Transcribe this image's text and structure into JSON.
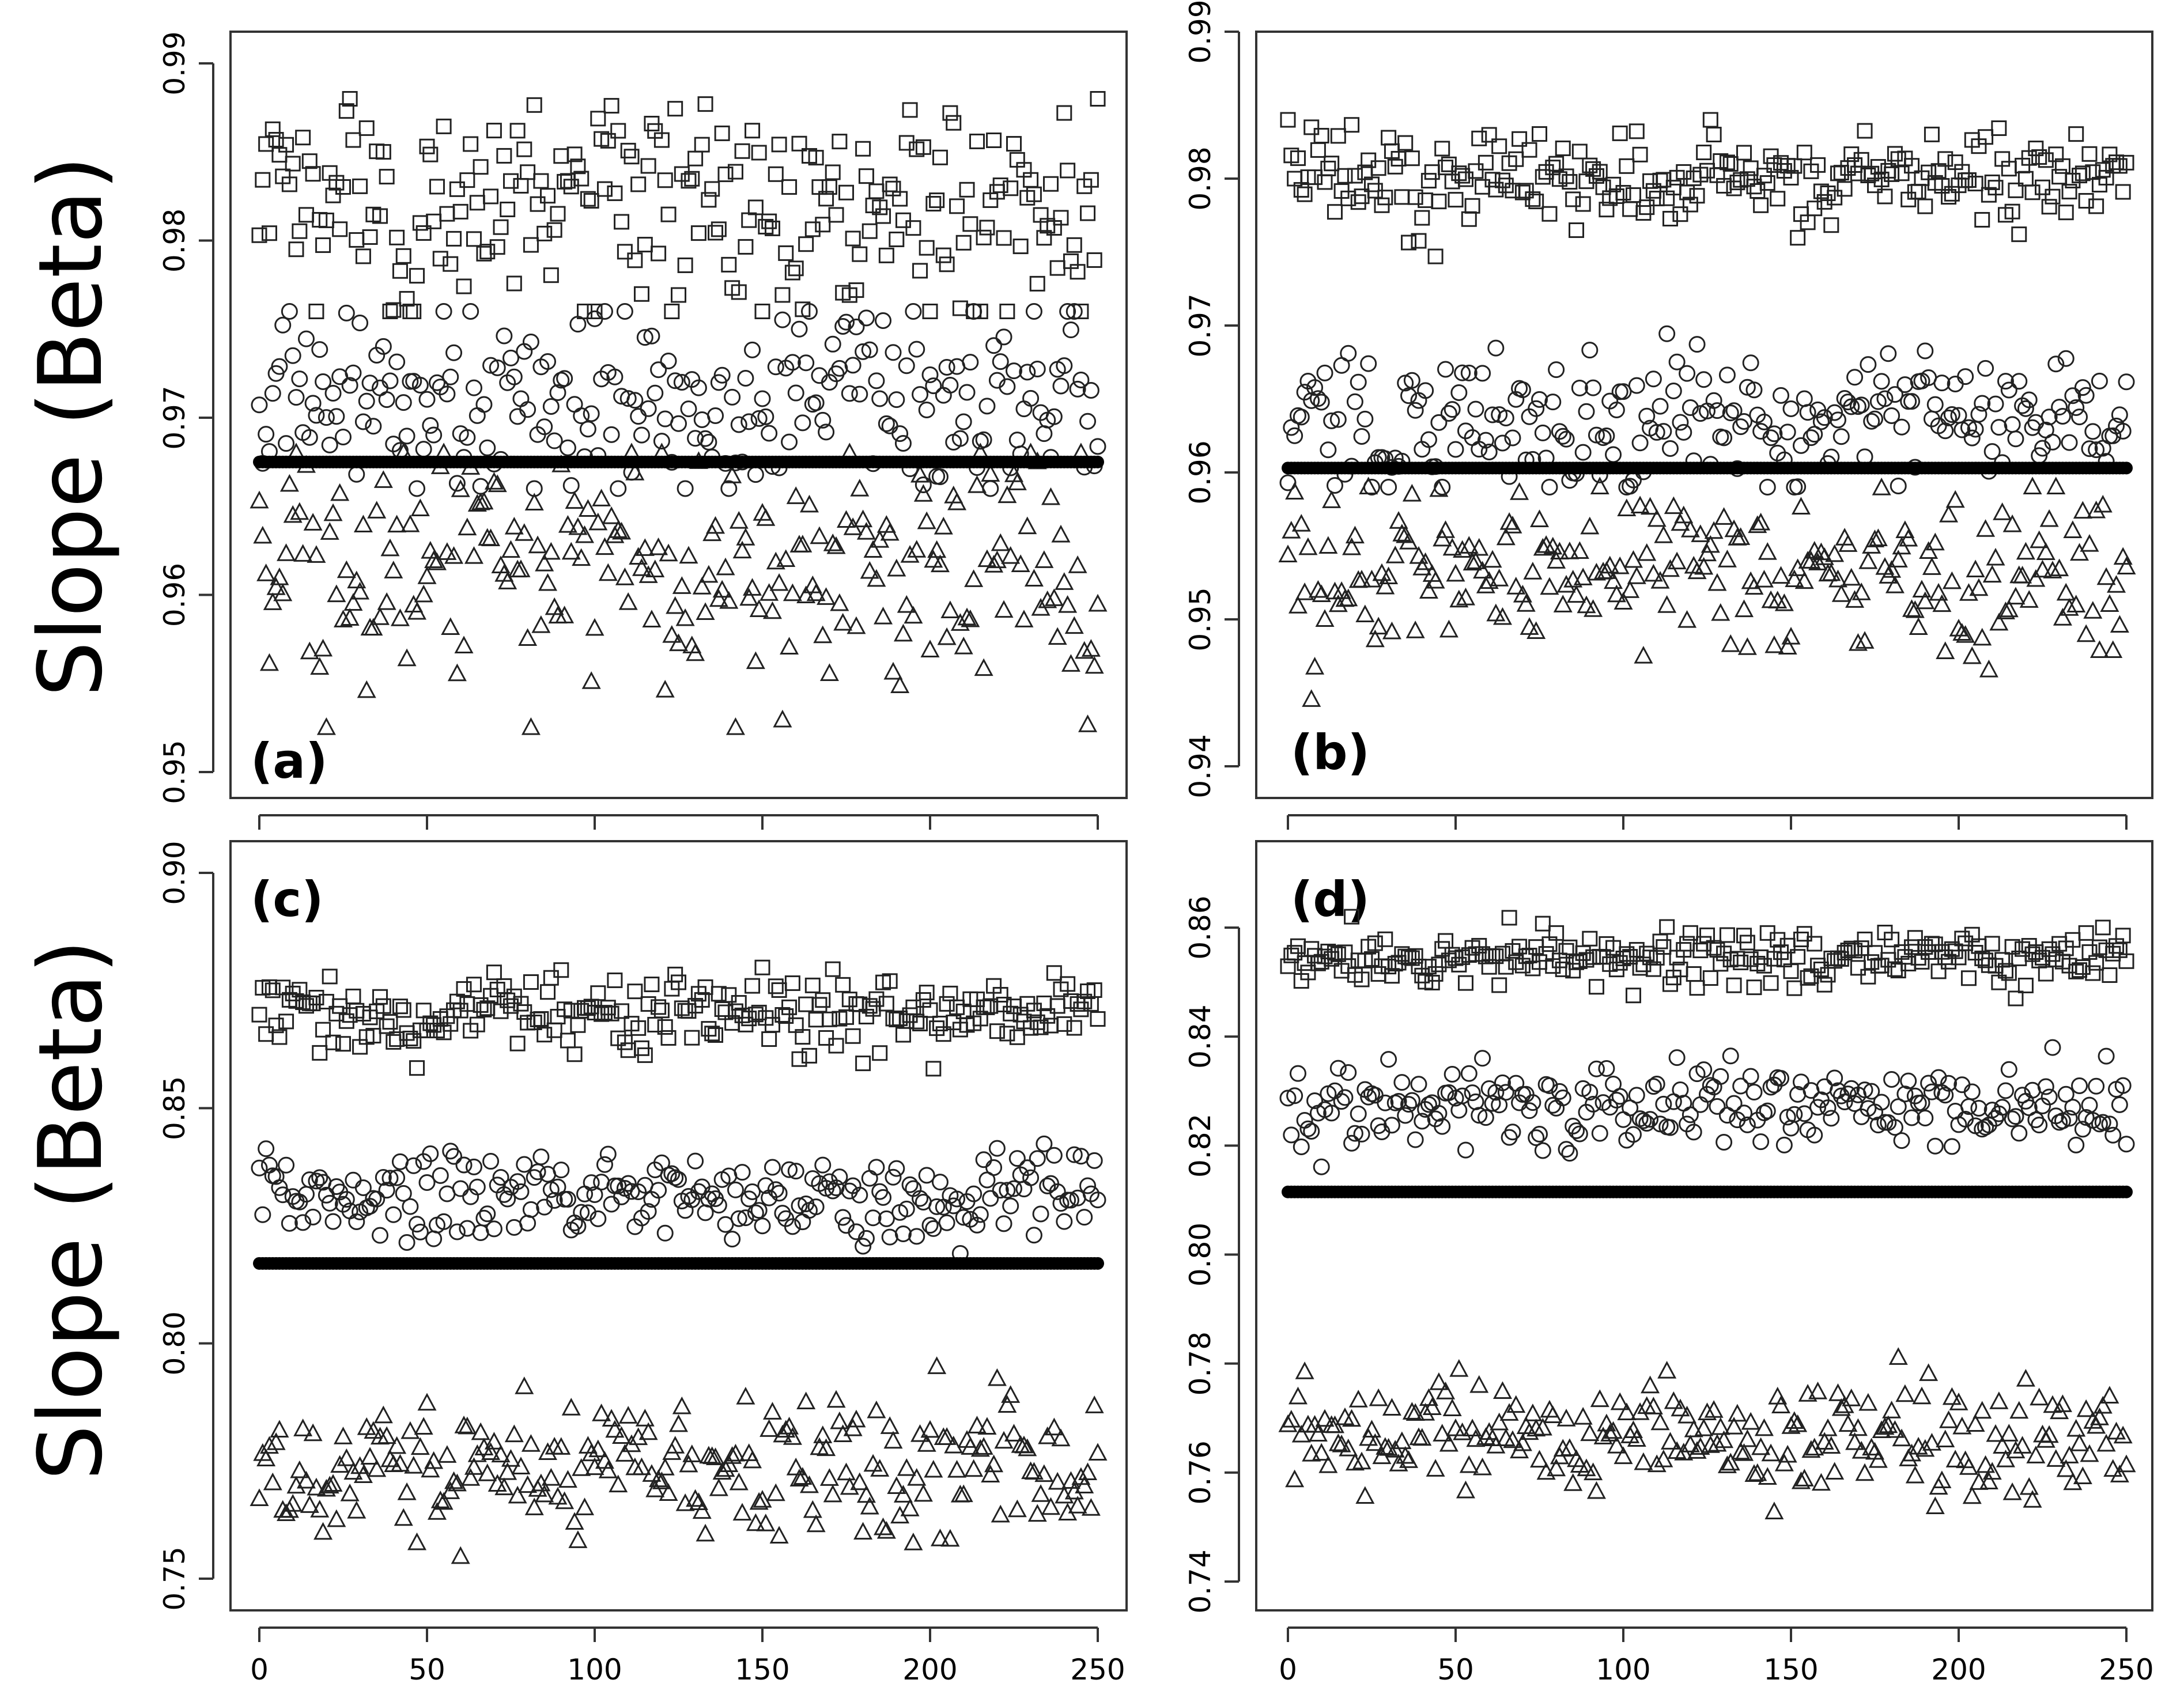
{
  "figure": {
    "ylabel": "Slope (Beta)"
  },
  "chart_data": [
    {
      "type": "scatter",
      "panel_label": "(a)",
      "xlim": [
        0,
        250
      ],
      "ylim": [
        0.95,
        0.99
      ],
      "x_ticks": [
        0,
        50,
        100,
        150,
        200,
        250
      ],
      "y_ticks": [
        0.95,
        0.96,
        0.97,
        0.98,
        0.99
      ],
      "y_tick_labels": [
        "0.95",
        "0.96",
        "0.97",
        "0.98",
        "0.99"
      ],
      "grid": false,
      "x_axis_labels_shown": false,
      "series": [
        {
          "marker": "square",
          "mean": 0.9818,
          "spread": 0.003,
          "min": 0.976,
          "max": 0.988
        },
        {
          "marker": "circle",
          "mean": 0.971,
          "spread": 0.0026,
          "min": 0.966,
          "max": 0.976
        },
        {
          "marker": "triangle",
          "mean": 0.9615,
          "spread": 0.0035,
          "min": 0.9525,
          "max": 0.968
        },
        {
          "marker": "filled-circle",
          "constant": 0.9675
        }
      ]
    },
    {
      "type": "scatter",
      "panel_label": "(b)",
      "xlim": [
        0,
        250
      ],
      "ylim": [
        0.94,
        0.99
      ],
      "x_ticks": [
        0,
        50,
        100,
        150,
        200,
        250
      ],
      "y_ticks": [
        0.94,
        0.95,
        0.96,
        0.97,
        0.98,
        0.99
      ],
      "y_tick_labels": [
        "0.94",
        "0.95",
        "0.96",
        "0.97",
        "0.98",
        "0.99"
      ],
      "grid": false,
      "x_axis_labels_shown": false,
      "series": [
        {
          "marker": "square",
          "mean": 0.98,
          "spread": 0.0016,
          "min": 0.9745,
          "max": 0.984
        },
        {
          "marker": "circle",
          "mean": 0.9635,
          "spread": 0.0023,
          "min": 0.959,
          "max": 0.97
        },
        {
          "marker": "triangle",
          "mean": 0.9535,
          "spread": 0.003,
          "min": 0.944,
          "max": 0.959
        },
        {
          "marker": "filled-circle",
          "constant": 0.9603
        }
      ]
    },
    {
      "type": "scatter",
      "panel_label": "(c)",
      "xlim": [
        0,
        250
      ],
      "ylim": [
        0.75,
        0.9
      ],
      "x_ticks": [
        0,
        50,
        100,
        150,
        200,
        250
      ],
      "x_tick_labels": [
        "0",
        "50",
        "100",
        "150",
        "200",
        "250"
      ],
      "y_ticks": [
        0.75,
        0.8,
        0.85,
        0.9
      ],
      "y_tick_labels": [
        "0.75",
        "0.80",
        "0.85",
        "0.90"
      ],
      "grid": false,
      "x_axis_labels_shown": true,
      "series": [
        {
          "marker": "square",
          "mean": 0.87,
          "spread": 0.004,
          "min": 0.856,
          "max": 0.884
        },
        {
          "marker": "circle",
          "mean": 0.831,
          "spread": 0.005,
          "min": 0.811,
          "max": 0.85
        },
        {
          "marker": "triangle",
          "mean": 0.774,
          "spread": 0.007,
          "min": 0.746,
          "max": 0.801
        },
        {
          "marker": "filled-circle",
          "constant": 0.817
        }
      ]
    },
    {
      "type": "scatter",
      "panel_label": "(d)",
      "xlim": [
        0,
        250
      ],
      "ylim": [
        0.74,
        0.86
      ],
      "x_ticks": [
        0,
        50,
        100,
        150,
        200,
        250
      ],
      "x_tick_labels": [
        "0",
        "50",
        "100",
        "150",
        "200",
        "250"
      ],
      "y_ticks": [
        0.74,
        0.76,
        0.78,
        0.8,
        0.82,
        0.84,
        0.86
      ],
      "y_tick_labels": [
        "0.74",
        "0.76",
        "0.78",
        "0.80",
        "0.82",
        "0.84",
        "0.86"
      ],
      "grid": false,
      "x_axis_labels_shown": true,
      "series": [
        {
          "marker": "square",
          "mean": 0.8545,
          "spread": 0.0025,
          "min": 0.847,
          "max": 0.862
        },
        {
          "marker": "circle",
          "mean": 0.827,
          "spread": 0.004,
          "min": 0.814,
          "max": 0.838
        },
        {
          "marker": "triangle",
          "mean": 0.766,
          "spread": 0.005,
          "min": 0.745,
          "max": 0.782
        },
        {
          "marker": "filled-circle",
          "constant": 0.8115
        }
      ]
    }
  ]
}
